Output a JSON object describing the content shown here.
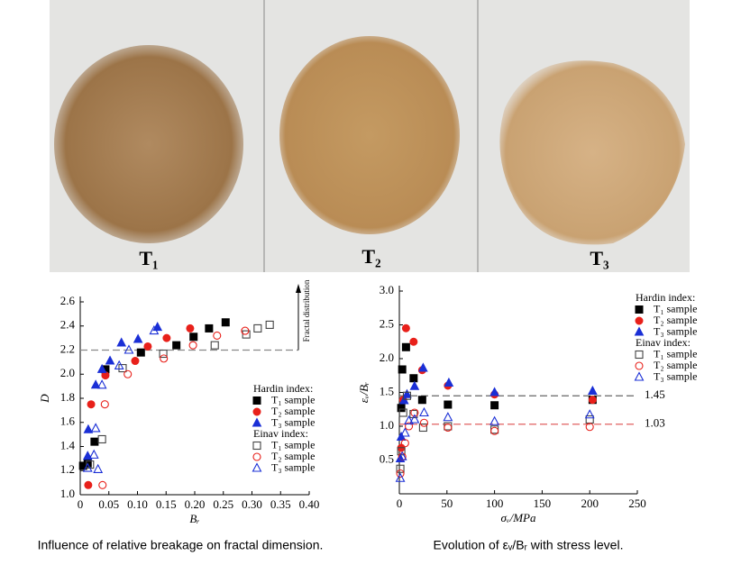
{
  "photos": {
    "labels": [
      "T₁",
      "T₂",
      "T₃"
    ]
  },
  "chart_data": [
    {
      "type": "scatter",
      "xlabel": "Bᵣ",
      "ylabel": "D",
      "caption": "Influence of relative breakage on fractal dimension.",
      "annotation": "Fractal distribution",
      "xlim": [
        0,
        0.4
      ],
      "ylim": [
        1.0,
        2.6
      ],
      "xticks": [
        0,
        0.05,
        {
          "value": 0.1,
          "label": "0.10"
        },
        0.15,
        {
          "value": 0.2,
          "label": "0.20"
        },
        0.25,
        {
          "value": 0.3,
          "label": "0.30"
        },
        0.35,
        {
          "value": 0.4,
          "label": "0.40"
        }
      ],
      "yticks": [
        {
          "value": 1.0,
          "label": "1.0"
        },
        1.2,
        1.4,
        1.6,
        1.8,
        {
          "value": 2.0,
          "label": "2.0"
        },
        2.2,
        2.4,
        2.6
      ],
      "hlines": [
        2.2
      ],
      "hline_colors": [
        "#888888"
      ],
      "legend_titles": [
        "Hardin index:",
        "Einav index:"
      ],
      "series": [
        {
          "name": "T₁ sample",
          "color": "#000000",
          "marker": "square",
          "filled": true,
          "x": [
            0.005,
            0.013,
            0.025,
            0.044,
            0.106,
            0.168,
            0.198,
            0.225,
            0.254
          ],
          "values": [
            1.24,
            1.26,
            1.44,
            2.04,
            2.18,
            2.24,
            2.31,
            2.38,
            2.43
          ]
        },
        {
          "name": "T₂ sample",
          "color": "#e8201a",
          "marker": "circle",
          "filled": true,
          "x": [
            0.014,
            0.019,
            0.044,
            0.096,
            0.118,
            0.151,
            0.192
          ],
          "values": [
            1.08,
            1.75,
            1.99,
            2.11,
            2.23,
            2.3,
            2.38
          ]
        },
        {
          "name": "T₃ sample",
          "color": "#1a2fd6",
          "marker": "triangle",
          "filled": true,
          "x": [
            0.013,
            0.014,
            0.027,
            0.038,
            0.052,
            0.072,
            0.101,
            0.135
          ],
          "values": [
            1.32,
            1.54,
            1.91,
            2.04,
            2.11,
            2.26,
            2.29,
            2.39
          ]
        },
        {
          "name": "T₁ sample",
          "color": "#444444",
          "marker": "square",
          "filled": false,
          "x": [
            0.017,
            0.038,
            0.074,
            0.145,
            0.235,
            0.29,
            0.31,
            0.331
          ],
          "values": [
            1.25,
            1.46,
            2.05,
            2.17,
            2.24,
            2.33,
            2.38,
            2.41
          ]
        },
        {
          "name": "T₂ sample",
          "color": "#e8201a",
          "marker": "circle",
          "filled": false,
          "x": [
            0.039,
            0.043,
            0.083,
            0.146,
            0.197,
            0.239,
            0.288
          ],
          "values": [
            1.08,
            1.75,
            2.0,
            2.13,
            2.24,
            2.32,
            2.36
          ]
        },
        {
          "name": "T₃ sample",
          "color": "#1a2fd6",
          "marker": "triangle",
          "filled": false,
          "x": [
            0.013,
            0.024,
            0.031,
            0.027,
            0.038,
            0.068,
            0.085,
            0.129
          ],
          "values": [
            1.22,
            1.33,
            1.21,
            1.55,
            1.91,
            2.07,
            2.2,
            2.36
          ]
        }
      ]
    },
    {
      "type": "scatter",
      "xlabel": "σᵥ/MPa",
      "ylabel": "εᵥ/Bᵣ",
      "caption": "Evolution of εᵥ/Bᵣ with stress level.",
      "xlim": [
        0,
        250
      ],
      "ylim": [
        0,
        3.0
      ],
      "xticks": [
        0,
        50,
        100,
        150,
        200,
        250
      ],
      "yticks": [
        0.5,
        {
          "value": 1.0,
          "label": "1.0"
        },
        1.5,
        {
          "value": 2.0,
          "label": "2.0"
        },
        2.5,
        {
          "value": 3.0,
          "label": "3.0"
        }
      ],
      "hlines": [
        1.45,
        1.03
      ],
      "hline_colors": [
        "#666666",
        "#e06060"
      ],
      "legend_titles": [
        "Hardin index:",
        "Einav index:"
      ],
      "series": [
        {
          "name": "T₁ sample",
          "color": "#000000",
          "marker": "square",
          "filled": true,
          "x": [
            2,
            3,
            7,
            15,
            24,
            51,
            100,
            203
          ],
          "values": [
            1.27,
            1.84,
            2.17,
            1.71,
            1.39,
            1.32,
            1.31,
            1.39
          ]
        },
        {
          "name": "T₂ sample",
          "color": "#e8201a",
          "marker": "circle",
          "filled": true,
          "x": [
            2,
            4,
            7,
            15,
            24,
            51,
            100,
            203
          ],
          "values": [
            0.68,
            1.39,
            2.45,
            2.25,
            1.83,
            1.6,
            1.47,
            1.39
          ]
        },
        {
          "name": "T₃ sample",
          "color": "#1a2fd6",
          "marker": "triangle",
          "filled": true,
          "x": [
            1,
            2,
            5,
            8,
            16,
            25,
            52,
            100,
            203
          ],
          "values": [
            0.52,
            0.84,
            1.38,
            1.47,
            1.59,
            1.86,
            1.64,
            1.5,
            1.52
          ]
        },
        {
          "name": "T₁ sample",
          "color": "#444444",
          "marker": "square",
          "filled": false,
          "x": [
            1,
            2,
            4,
            8,
            15,
            25,
            51,
            100,
            200
          ],
          "values": [
            0.37,
            0.63,
            1.2,
            1.45,
            1.18,
            0.98,
            1.0,
            0.95,
            1.1
          ]
        },
        {
          "name": "T₂ sample",
          "color": "#e8201a",
          "marker": "circle",
          "filled": false,
          "x": [
            1,
            3,
            6,
            10,
            16,
            26,
            51,
            100,
            200
          ],
          "values": [
            0.3,
            0.55,
            0.75,
            1.0,
            1.2,
            1.05,
            0.98,
            0.93,
            0.99
          ]
        },
        {
          "name": "T₃ sample",
          "color": "#1a2fd6",
          "marker": "triangle",
          "filled": false,
          "x": [
            1,
            3,
            6,
            10,
            16,
            26,
            51,
            100,
            200
          ],
          "values": [
            0.23,
            0.55,
            0.9,
            1.08,
            1.1,
            1.2,
            1.13,
            1.07,
            1.17
          ]
        }
      ]
    }
  ]
}
